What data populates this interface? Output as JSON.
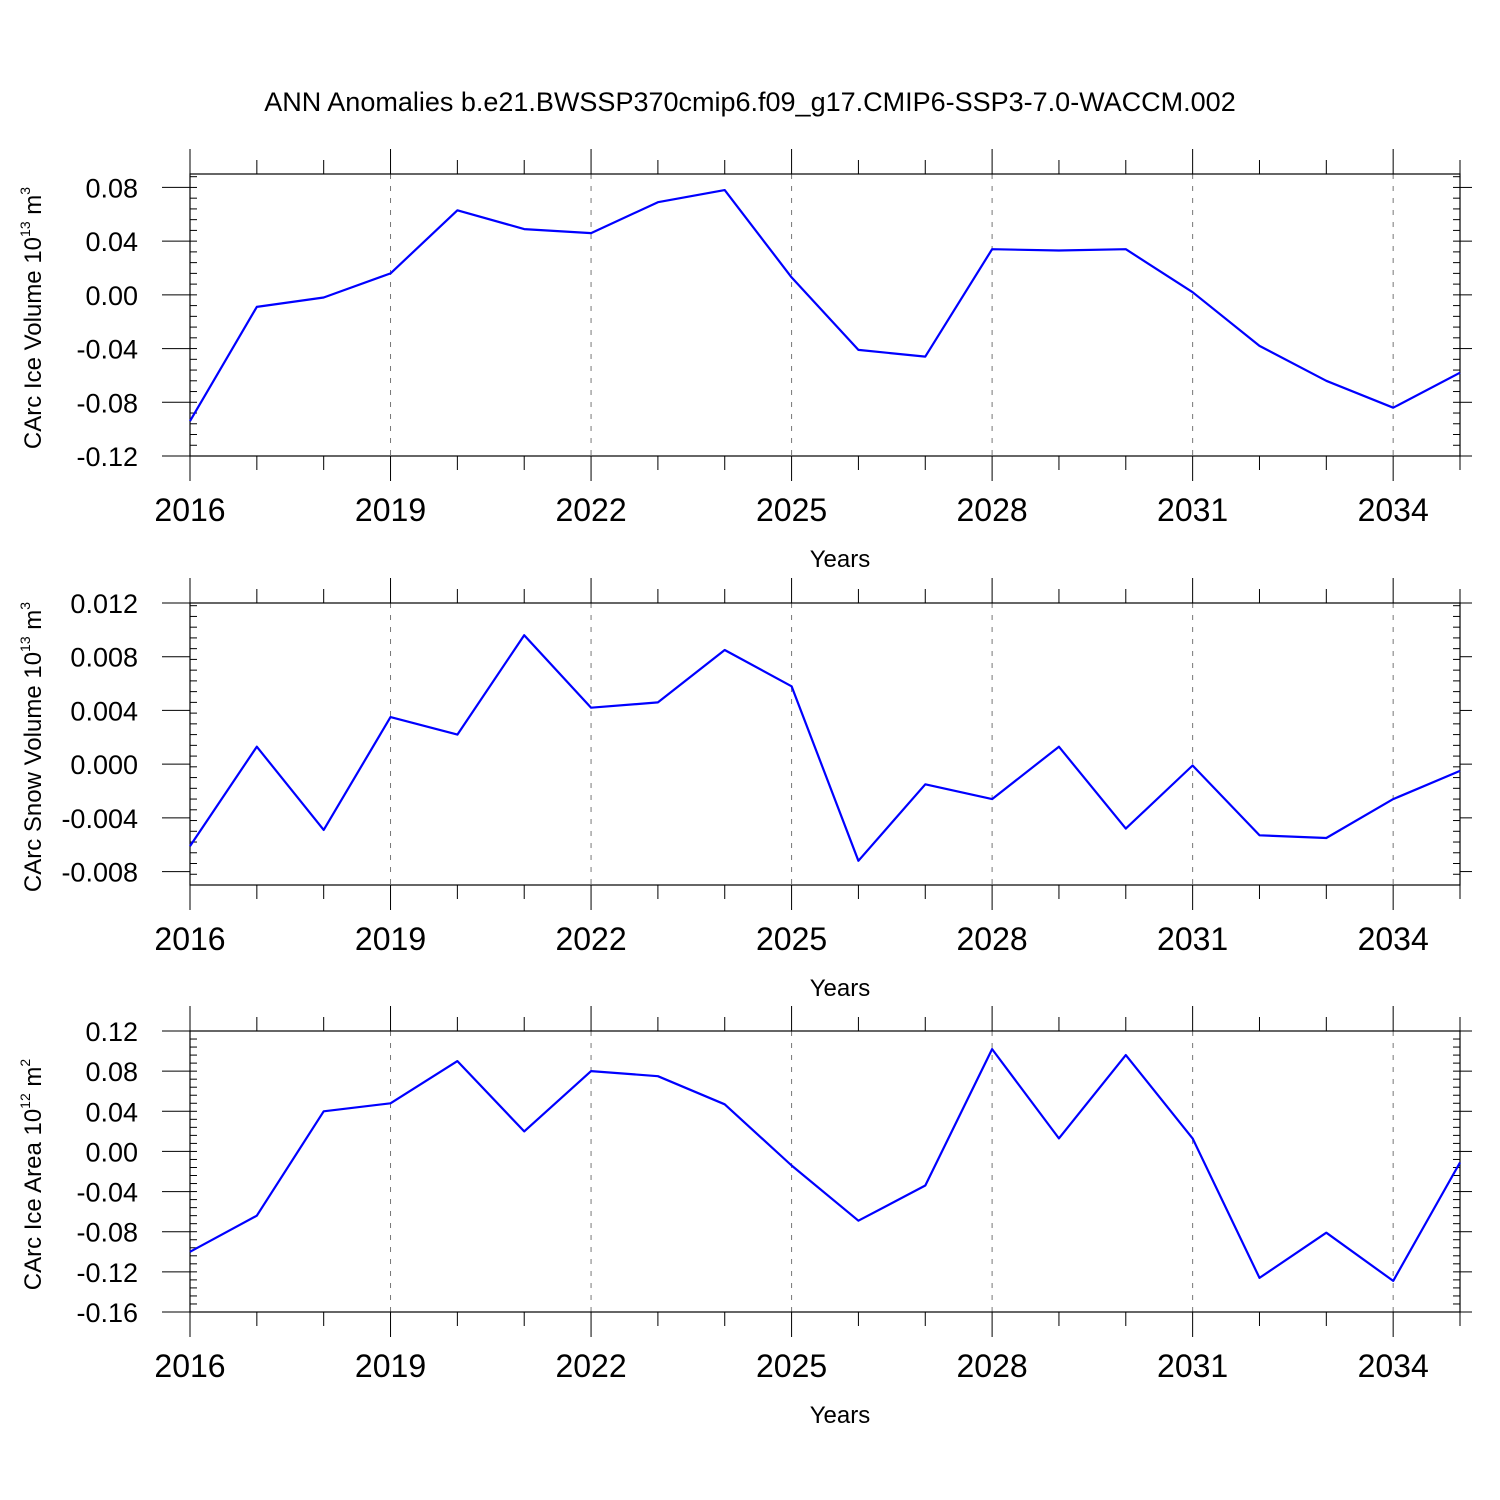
{
  "figure_title": "ANN Anomalies b.e21.BWSSP370cmip6.f09_g17.CMIP6-SSP3-7.0-WACCM.002",
  "colors": {
    "line": "#0000ff",
    "axes": "#000000",
    "grid": "#777777"
  },
  "chart_data": [
    {
      "type": "line",
      "name": "ice-volume",
      "ylabel_prefix": "CArc Ice Volume 10",
      "ylabel_exp": "13",
      "ylabel_unit": " m",
      "ylabel_unit_exp": "3",
      "xlabel": "Years",
      "xlim": [
        2016,
        2035
      ],
      "ylim": [
        -0.12,
        0.09
      ],
      "x_ticks": [
        2016,
        2019,
        2022,
        2025,
        2028,
        2031,
        2034
      ],
      "x_tick_labels": [
        "2016",
        "2019",
        "2022",
        "2025",
        "2028",
        "2031",
        "2034"
      ],
      "y_ticks": [
        -0.12,
        -0.08,
        -0.04,
        0.0,
        0.04,
        0.08
      ],
      "y_tick_labels": [
        "-0.12",
        "-0.08",
        "-0.04",
        "0.00",
        "0.04",
        "0.08"
      ],
      "y_minor_step": 0.008,
      "x": [
        2016,
        2017,
        2018,
        2019,
        2020,
        2021,
        2022,
        2023,
        2024,
        2025,
        2026,
        2027,
        2028,
        2029,
        2030,
        2031,
        2032,
        2033,
        2034,
        2035
      ],
      "values": [
        -0.094,
        -0.009,
        -0.002,
        0.016,
        0.063,
        0.049,
        0.046,
        0.069,
        0.078,
        0.013,
        -0.041,
        -0.046,
        0.034,
        0.033,
        0.034,
        0.002,
        -0.038,
        -0.064,
        -0.084,
        -0.058
      ]
    },
    {
      "type": "line",
      "name": "snow-volume",
      "ylabel_prefix": "CArc Snow Volume 10",
      "ylabel_exp": "13",
      "ylabel_unit": " m",
      "ylabel_unit_exp": "3",
      "xlabel": "Years",
      "xlim": [
        2016,
        2035
      ],
      "ylim": [
        -0.009,
        0.012
      ],
      "x_ticks": [
        2016,
        2019,
        2022,
        2025,
        2028,
        2031,
        2034
      ],
      "x_tick_labels": [
        "2016",
        "2019",
        "2022",
        "2025",
        "2028",
        "2031",
        "2034"
      ],
      "y_ticks": [
        -0.008,
        -0.004,
        0.0,
        0.004,
        0.008,
        0.012
      ],
      "y_tick_labels": [
        "-0.008",
        "-0.004",
        "0.000",
        "0.004",
        "0.008",
        "0.012"
      ],
      "y_minor_step": 0.0008,
      "x": [
        2016,
        2017,
        2018,
        2019,
        2020,
        2021,
        2022,
        2023,
        2024,
        2025,
        2026,
        2027,
        2028,
        2029,
        2030,
        2031,
        2032,
        2033,
        2034,
        2035
      ],
      "values": [
        -0.0061,
        0.0013,
        -0.0049,
        0.0035,
        0.0022,
        0.0096,
        0.0042,
        0.0046,
        0.0085,
        0.0058,
        -0.0072,
        -0.0015,
        -0.0026,
        0.0013,
        -0.0048,
        -0.0001,
        -0.0053,
        -0.0055,
        -0.0026,
        -0.0005
      ]
    },
    {
      "type": "line",
      "name": "ice-area",
      "ylabel_prefix": "CArc Ice Area 10",
      "ylabel_exp": "12",
      "ylabel_unit": " m",
      "ylabel_unit_exp": "2",
      "xlabel": "Years",
      "xlim": [
        2016,
        2035
      ],
      "ylim": [
        -0.16,
        0.12
      ],
      "x_ticks": [
        2016,
        2019,
        2022,
        2025,
        2028,
        2031,
        2034
      ],
      "x_tick_labels": [
        "2016",
        "2019",
        "2022",
        "2025",
        "2028",
        "2031",
        "2034"
      ],
      "y_ticks": [
        -0.16,
        -0.12,
        -0.08,
        -0.04,
        0.0,
        0.04,
        0.08,
        0.12
      ],
      "y_tick_labels": [
        "-0.16",
        "-0.12",
        "-0.08",
        "-0.04",
        "0.00",
        "0.04",
        "0.08",
        "0.12"
      ],
      "y_minor_step": 0.008,
      "x": [
        2016,
        2017,
        2018,
        2019,
        2020,
        2021,
        2022,
        2023,
        2024,
        2025,
        2026,
        2027,
        2028,
        2029,
        2030,
        2031,
        2032,
        2033,
        2034,
        2035
      ],
      "values": [
        -0.1,
        -0.064,
        0.04,
        0.048,
        0.09,
        0.02,
        0.08,
        0.075,
        0.047,
        -0.014,
        -0.069,
        -0.034,
        0.102,
        0.013,
        0.096,
        0.013,
        -0.126,
        -0.081,
        -0.129,
        -0.011
      ]
    }
  ]
}
